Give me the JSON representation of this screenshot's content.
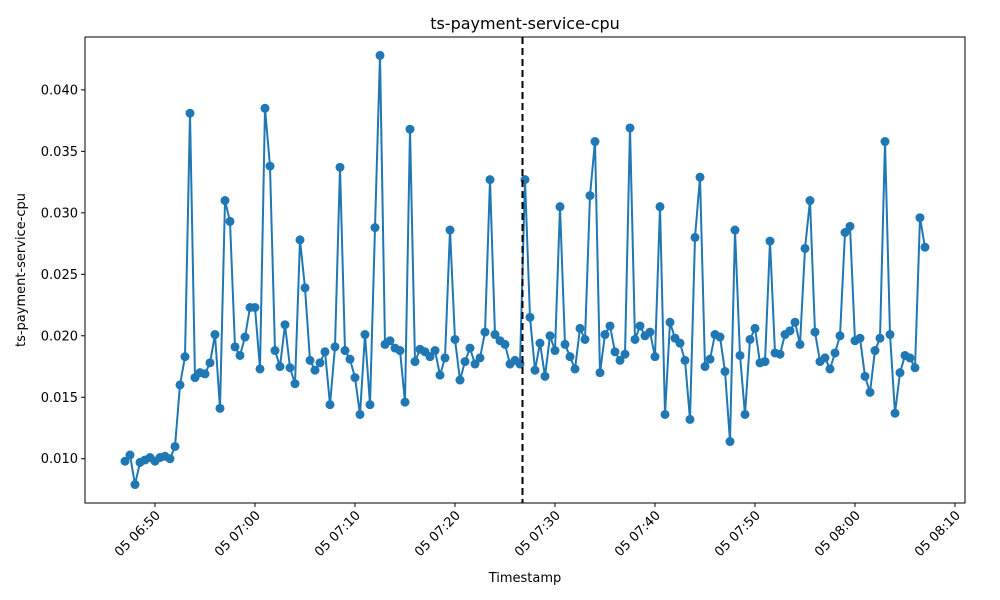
{
  "chart_data": {
    "type": "line",
    "title": "ts-payment-service-cpu",
    "xlabel": "Timestamp",
    "ylabel": "ts-payment-service-cpu",
    "x_start": "05 06:47",
    "x_step_minutes": 0.5,
    "xlim": [
      "05 06:43:00",
      "05 08:11:00"
    ],
    "ylim": [
      0.0064,
      0.0443
    ],
    "x_ticks": [
      "05 06:50",
      "05 07:00",
      "05 07:10",
      "05 07:20",
      "05 07:30",
      "05 07:40",
      "05 07:50",
      "05 08:00",
      "05 08:10"
    ],
    "y_ticks": [
      "0.010",
      "0.015",
      "0.020",
      "0.025",
      "0.030",
      "0.035",
      "0.040"
    ],
    "marker_line_x": "05 07:26:45",
    "marker_line_style": "dashed",
    "grid": false,
    "legend": false,
    "series": [
      {
        "color": "#1f77b4",
        "marker": "circle",
        "values": [
          0.0098,
          0.0103,
          0.0079,
          0.0097,
          0.0099,
          0.0101,
          0.0098,
          0.0101,
          0.0102,
          0.01,
          0.011,
          0.016,
          0.0183,
          0.0381,
          0.0166,
          0.017,
          0.0169,
          0.0178,
          0.0201,
          0.0141,
          0.031,
          0.0293,
          0.0191,
          0.0184,
          0.0199,
          0.0223,
          0.0223,
          0.0173,
          0.0385,
          0.0338,
          0.0188,
          0.0175,
          0.0209,
          0.0174,
          0.0161,
          0.0278,
          0.0239,
          0.018,
          0.0172,
          0.0178,
          0.0187,
          0.0144,
          0.0191,
          0.0337,
          0.0188,
          0.0181,
          0.0166,
          0.0136,
          0.0201,
          0.0144,
          0.0288,
          0.0428,
          0.0193,
          0.0196,
          0.019,
          0.0188,
          0.0146,
          0.0368,
          0.0179,
          0.0189,
          0.0187,
          0.0183,
          0.0188,
          0.0168,
          0.0182,
          0.0286,
          0.0197,
          0.0164,
          0.0179,
          0.019,
          0.0177,
          0.0182,
          0.0203,
          0.0327,
          0.0201,
          0.0196,
          0.0193,
          0.0177,
          0.018,
          0.0177,
          0.0327,
          0.0215,
          0.0172,
          0.0194,
          0.0167,
          0.02,
          0.0188,
          0.0305,
          0.0193,
          0.0183,
          0.0173,
          0.0206,
          0.0197,
          0.0314,
          0.0358,
          0.017,
          0.0201,
          0.0208,
          0.0187,
          0.018,
          0.0185,
          0.0369,
          0.0197,
          0.0208,
          0.02,
          0.0203,
          0.0183,
          0.0305,
          0.0136,
          0.0211,
          0.0198,
          0.0194,
          0.018,
          0.0132,
          0.028,
          0.0329,
          0.0175,
          0.0181,
          0.0201,
          0.0199,
          0.0171,
          0.0114,
          0.0286,
          0.0184,
          0.0136,
          0.0197,
          0.0206,
          0.0178,
          0.0179,
          0.0277,
          0.0186,
          0.0185,
          0.0201,
          0.0204,
          0.0211,
          0.0193,
          0.0271,
          0.031,
          0.0203,
          0.0179,
          0.0182,
          0.0173,
          0.0186,
          0.02,
          0.0284,
          0.0289,
          0.0196,
          0.0198,
          0.0167,
          0.0154,
          0.0188,
          0.0198,
          0.0358,
          0.0201,
          0.0137,
          0.017,
          0.0184,
          0.0182,
          0.0174,
          0.0296,
          0.0272
        ]
      }
    ]
  }
}
